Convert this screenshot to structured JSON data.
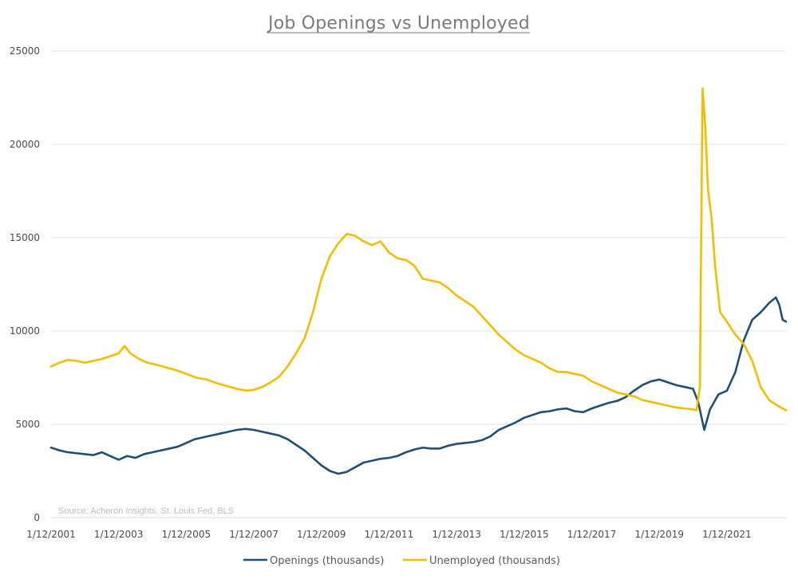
{
  "chart_data": {
    "type": "line",
    "title": "Job Openings vs Unemployed",
    "source": "Source: Acheron Insights, St. Louis Fed, BLS",
    "xlabel": "",
    "ylabel": "",
    "ylim": [
      0,
      25000
    ],
    "y_ticks": [
      "0",
      "5000",
      "10000",
      "15000",
      "20000",
      "25000"
    ],
    "y_tick_values": [
      0,
      5000,
      10000,
      15000,
      20000,
      25000
    ],
    "xlim": [
      2001.0,
      2022.75
    ],
    "x_ticks": [
      "1/12/2001",
      "1/12/2003",
      "1/12/2005",
      "1/12/2007",
      "1/12/2009",
      "1/12/2011",
      "1/12/2013",
      "1/12/2015",
      "1/12/2017",
      "1/12/2019",
      "1/12/2021"
    ],
    "x_tick_values": [
      2001,
      2003,
      2005,
      2007,
      2009,
      2011,
      2013,
      2015,
      2017,
      2019,
      2021
    ],
    "grid": "horizontal",
    "legend_position": "bottom",
    "series": [
      {
        "name": "Openings (thousands)",
        "color": "#1f4e79",
        "points": [
          [
            2001.0,
            3750
          ],
          [
            2001.25,
            3600
          ],
          [
            2001.5,
            3500
          ],
          [
            2001.75,
            3450
          ],
          [
            2002.0,
            3400
          ],
          [
            2002.25,
            3350
          ],
          [
            2002.5,
            3500
          ],
          [
            2002.75,
            3300
          ],
          [
            2003.0,
            3100
          ],
          [
            2003.25,
            3300
          ],
          [
            2003.5,
            3200
          ],
          [
            2003.75,
            3400
          ],
          [
            2004.0,
            3500
          ],
          [
            2004.25,
            3600
          ],
          [
            2004.5,
            3700
          ],
          [
            2004.75,
            3800
          ],
          [
            2005.0,
            4000
          ],
          [
            2005.25,
            4200
          ],
          [
            2005.5,
            4300
          ],
          [
            2005.75,
            4400
          ],
          [
            2006.0,
            4500
          ],
          [
            2006.25,
            4600
          ],
          [
            2006.5,
            4700
          ],
          [
            2006.75,
            4750
          ],
          [
            2007.0,
            4700
          ],
          [
            2007.25,
            4600
          ],
          [
            2007.5,
            4500
          ],
          [
            2007.75,
            4400
          ],
          [
            2008.0,
            4200
          ],
          [
            2008.25,
            3900
          ],
          [
            2008.5,
            3600
          ],
          [
            2008.75,
            3200
          ],
          [
            2009.0,
            2800
          ],
          [
            2009.25,
            2500
          ],
          [
            2009.5,
            2350
          ],
          [
            2009.75,
            2450
          ],
          [
            2010.0,
            2700
          ],
          [
            2010.25,
            2950
          ],
          [
            2010.5,
            3050
          ],
          [
            2010.75,
            3150
          ],
          [
            2011.0,
            3200
          ],
          [
            2011.25,
            3300
          ],
          [
            2011.5,
            3500
          ],
          [
            2011.75,
            3650
          ],
          [
            2012.0,
            3750
          ],
          [
            2012.25,
            3700
          ],
          [
            2012.5,
            3700
          ],
          [
            2012.75,
            3850
          ],
          [
            2013.0,
            3950
          ],
          [
            2013.25,
            4000
          ],
          [
            2013.5,
            4050
          ],
          [
            2013.75,
            4150
          ],
          [
            2014.0,
            4350
          ],
          [
            2014.25,
            4700
          ],
          [
            2014.5,
            4900
          ],
          [
            2014.75,
            5100
          ],
          [
            2015.0,
            5350
          ],
          [
            2015.25,
            5500
          ],
          [
            2015.5,
            5650
          ],
          [
            2015.75,
            5700
          ],
          [
            2016.0,
            5800
          ],
          [
            2016.25,
            5850
          ],
          [
            2016.5,
            5700
          ],
          [
            2016.75,
            5650
          ],
          [
            2017.0,
            5850
          ],
          [
            2017.25,
            6000
          ],
          [
            2017.5,
            6150
          ],
          [
            2017.75,
            6250
          ],
          [
            2018.0,
            6450
          ],
          [
            2018.25,
            6800
          ],
          [
            2018.5,
            7100
          ],
          [
            2018.75,
            7300
          ],
          [
            2019.0,
            7400
          ],
          [
            2019.25,
            7250
          ],
          [
            2019.5,
            7100
          ],
          [
            2019.75,
            7000
          ],
          [
            2020.0,
            6900
          ],
          [
            2020.15,
            6200
          ],
          [
            2020.33,
            4700
          ],
          [
            2020.5,
            5800
          ],
          [
            2020.75,
            6600
          ],
          [
            2021.0,
            6800
          ],
          [
            2021.25,
            7800
          ],
          [
            2021.5,
            9500
          ],
          [
            2021.75,
            10600
          ],
          [
            2022.0,
            11000
          ],
          [
            2022.25,
            11500
          ],
          [
            2022.45,
            11800
          ],
          [
            2022.55,
            11400
          ],
          [
            2022.65,
            10600
          ],
          [
            2022.75,
            10500
          ]
        ]
      },
      {
        "name": "Unemployed (thousands)",
        "color": "#f5bd00",
        "points": [
          [
            2001.0,
            8100
          ],
          [
            2001.25,
            8300
          ],
          [
            2001.5,
            8450
          ],
          [
            2001.75,
            8400
          ],
          [
            2002.0,
            8300
          ],
          [
            2002.25,
            8400
          ],
          [
            2002.5,
            8500
          ],
          [
            2002.75,
            8650
          ],
          [
            2003.0,
            8800
          ],
          [
            2003.17,
            9200
          ],
          [
            2003.35,
            8800
          ],
          [
            2003.6,
            8500
          ],
          [
            2003.85,
            8300
          ],
          [
            2004.1,
            8200
          ],
          [
            2004.4,
            8050
          ],
          [
            2004.7,
            7900
          ],
          [
            2005.0,
            7700
          ],
          [
            2005.3,
            7500
          ],
          [
            2005.6,
            7400
          ],
          [
            2005.9,
            7200
          ],
          [
            2006.2,
            7050
          ],
          [
            2006.5,
            6900
          ],
          [
            2006.8,
            6800
          ],
          [
            2007.0,
            6850
          ],
          [
            2007.25,
            7000
          ],
          [
            2007.5,
            7250
          ],
          [
            2007.75,
            7550
          ],
          [
            2008.0,
            8100
          ],
          [
            2008.25,
            8800
          ],
          [
            2008.5,
            9600
          ],
          [
            2008.75,
            11000
          ],
          [
            2009.0,
            12800
          ],
          [
            2009.25,
            14000
          ],
          [
            2009.5,
            14700
          ],
          [
            2009.75,
            15200
          ],
          [
            2010.0,
            15100
          ],
          [
            2010.25,
            14800
          ],
          [
            2010.5,
            14600
          ],
          [
            2010.75,
            14800
          ],
          [
            2011.0,
            14200
          ],
          [
            2011.25,
            13900
          ],
          [
            2011.5,
            13800
          ],
          [
            2011.75,
            13500
          ],
          [
            2012.0,
            12800
          ],
          [
            2012.25,
            12700
          ],
          [
            2012.5,
            12600
          ],
          [
            2012.75,
            12300
          ],
          [
            2013.0,
            11900
          ],
          [
            2013.25,
            11600
          ],
          [
            2013.5,
            11300
          ],
          [
            2013.75,
            10800
          ],
          [
            2014.0,
            10300
          ],
          [
            2014.25,
            9800
          ],
          [
            2014.5,
            9400
          ],
          [
            2014.75,
            9000
          ],
          [
            2015.0,
            8700
          ],
          [
            2015.25,
            8500
          ],
          [
            2015.5,
            8300
          ],
          [
            2015.75,
            8000
          ],
          [
            2016.0,
            7800
          ],
          [
            2016.25,
            7800
          ],
          [
            2016.5,
            7700
          ],
          [
            2016.75,
            7600
          ],
          [
            2017.0,
            7300
          ],
          [
            2017.25,
            7100
          ],
          [
            2017.5,
            6900
          ],
          [
            2017.75,
            6700
          ],
          [
            2018.0,
            6600
          ],
          [
            2018.25,
            6500
          ],
          [
            2018.5,
            6300
          ],
          [
            2018.75,
            6200
          ],
          [
            2019.0,
            6100
          ],
          [
            2019.25,
            6000
          ],
          [
            2019.5,
            5900
          ],
          [
            2019.75,
            5850
          ],
          [
            2020.0,
            5800
          ],
          [
            2020.1,
            5750
          ],
          [
            2020.2,
            7000
          ],
          [
            2020.28,
            23000
          ],
          [
            2020.36,
            21000
          ],
          [
            2020.44,
            17600
          ],
          [
            2020.55,
            16000
          ],
          [
            2020.65,
            13500
          ],
          [
            2020.8,
            11000
          ],
          [
            2021.0,
            10500
          ],
          [
            2021.25,
            9800
          ],
          [
            2021.5,
            9300
          ],
          [
            2021.75,
            8400
          ],
          [
            2022.0,
            7000
          ],
          [
            2022.25,
            6300
          ],
          [
            2022.5,
            6000
          ],
          [
            2022.75,
            5750
          ]
        ]
      }
    ]
  }
}
